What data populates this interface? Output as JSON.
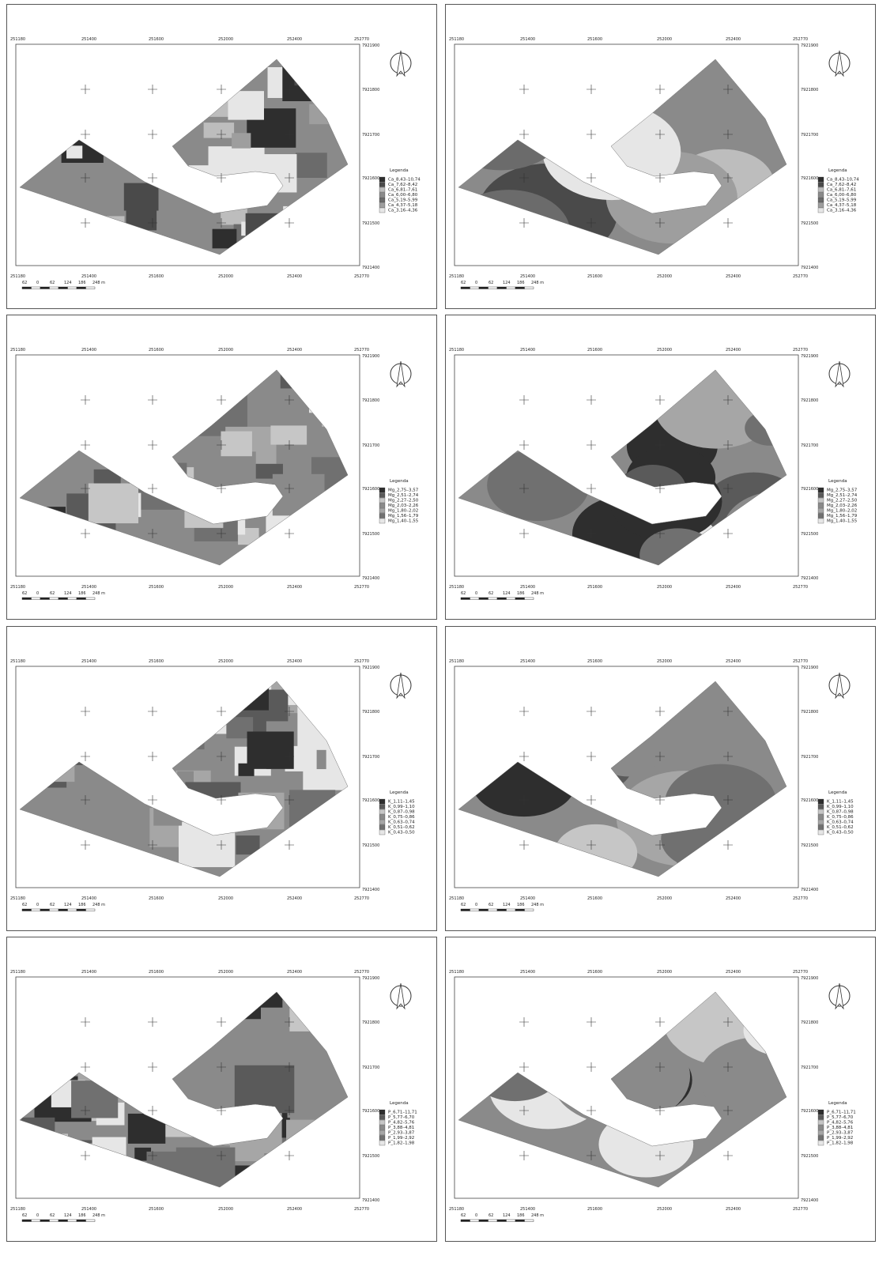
{
  "coordinates": {
    "x_labels": [
      "251180",
      "251400",
      "251600",
      "252000",
      "252400",
      "252770"
    ],
    "y_labels": [
      "7921900",
      "7921800",
      "7921700",
      "7921600",
      "7921500",
      "7921400"
    ]
  },
  "scale_bar": {
    "labels": [
      "62",
      "0",
      "62",
      "124",
      "186",
      "248 m"
    ]
  },
  "panels": [
    {
      "legend_title": "Legenda",
      "legend": [
        {
          "label": "Ca_8,43–10,74",
          "color": "#2e2e2e"
        },
        {
          "label": "Ca_7,62–8,42",
          "color": "#4a4a4a"
        },
        {
          "label": "Ca_6,81–7,61",
          "color": "#bdbdbd"
        },
        {
          "label": "Ca_6,00–6,80",
          "color": "#8a8a8a"
        },
        {
          "label": "Ca_5,19–5,99",
          "color": "#6b6b6b"
        },
        {
          "label": "Ca_4,37–5,18",
          "color": "#9e9e9e"
        },
        {
          "label": "Ca_3,16–4,36",
          "color": "#e6e6e6"
        }
      ]
    },
    {
      "legend_title": "Legenda",
      "legend": [
        {
          "label": "Ca_8,43–10,74",
          "color": "#2e2e2e"
        },
        {
          "label": "Ca_7,62–8,42",
          "color": "#4a4a4a"
        },
        {
          "label": "Ca_6,81–7,61",
          "color": "#bdbdbd"
        },
        {
          "label": "Ca_6,00–6,80",
          "color": "#8a8a8a"
        },
        {
          "label": "Ca_5,19–5,99",
          "color": "#6b6b6b"
        },
        {
          "label": "Ca_4,37–5,18",
          "color": "#9e9e9e"
        },
        {
          "label": "Ca_3,16–4,36",
          "color": "#e6e6e6"
        }
      ]
    },
    {
      "legend_title": "Legenda",
      "legend": [
        {
          "label": "Mg_2,75–3,57",
          "color": "#2e2e2e"
        },
        {
          "label": "Mg_2,51–2,74",
          "color": "#5a5a5a"
        },
        {
          "label": "Mg_2,27–2,50",
          "color": "#c6c6c6"
        },
        {
          "label": "Mg_2,03–2,26",
          "color": "#8a8a8a"
        },
        {
          "label": "Mg_1,80–2,02",
          "color": "#a6a6a6"
        },
        {
          "label": "Mg_1,56–1,79",
          "color": "#707070"
        },
        {
          "label": "Mg_1,40–1,55",
          "color": "#e6e6e6"
        }
      ]
    },
    {
      "legend_title": "Legenda",
      "legend": [
        {
          "label": "Mg_2,75–3,57",
          "color": "#2e2e2e"
        },
        {
          "label": "Mg_2,51–2,74",
          "color": "#5a5a5a"
        },
        {
          "label": "Mg_2,27–2,50",
          "color": "#c6c6c6"
        },
        {
          "label": "Mg_2,03–2,26",
          "color": "#8a8a8a"
        },
        {
          "label": "Mg_1,80–2,02",
          "color": "#a6a6a6"
        },
        {
          "label": "Mg_1,56–1,79",
          "color": "#707070"
        },
        {
          "label": "Mg_1,40–1,55",
          "color": "#e6e6e6"
        }
      ]
    },
    {
      "legend_title": "Legenda",
      "legend": [
        {
          "label": "K_1,11–1,45",
          "color": "#2e2e2e"
        },
        {
          "label": "K_0,99–1,10",
          "color": "#5a5a5a"
        },
        {
          "label": "K_0,87–0,98",
          "color": "#c6c6c6"
        },
        {
          "label": "K_0,75–0,86",
          "color": "#8a8a8a"
        },
        {
          "label": "K_0,63–0,74",
          "color": "#a6a6a6"
        },
        {
          "label": "K_0,51–0,62",
          "color": "#707070"
        },
        {
          "label": "K_0,43–0,50",
          "color": "#e6e6e6"
        }
      ]
    },
    {
      "legend_title": "Legenda",
      "legend": [
        {
          "label": "K_1,11–1,45",
          "color": "#2e2e2e"
        },
        {
          "label": "K_0,99–1,10",
          "color": "#5a5a5a"
        },
        {
          "label": "K_0,87–0,98",
          "color": "#c6c6c6"
        },
        {
          "label": "K_0,75–0,86",
          "color": "#8a8a8a"
        },
        {
          "label": "K_0,63–0,74",
          "color": "#a6a6a6"
        },
        {
          "label": "K_0,51–0,62",
          "color": "#707070"
        },
        {
          "label": "K_0,43–0,50",
          "color": "#e6e6e6"
        }
      ]
    },
    {
      "legend_title": "Legenda",
      "legend": [
        {
          "label": "P_6,71–11,71",
          "color": "#2e2e2e"
        },
        {
          "label": "P_5,77–6,70",
          "color": "#5a5a5a"
        },
        {
          "label": "P_4,82–5,76",
          "color": "#c6c6c6"
        },
        {
          "label": "P_3,88–4,81",
          "color": "#8a8a8a"
        },
        {
          "label": "P_2,93–3,87",
          "color": "#a6a6a6"
        },
        {
          "label": "P_1,99–2,92",
          "color": "#707070"
        },
        {
          "label": "P_1,82–1,98",
          "color": "#e6e6e6"
        }
      ]
    },
    {
      "legend_title": "Legenda",
      "legend": [
        {
          "label": "P_6,71–11,71",
          "color": "#2e2e2e"
        },
        {
          "label": "P_5,77–6,70",
          "color": "#5a5a5a"
        },
        {
          "label": "P_4,82–5,76",
          "color": "#c6c6c6"
        },
        {
          "label": "P_3,88–4,81",
          "color": "#8a8a8a"
        },
        {
          "label": "P_2,93–3,87",
          "color": "#a6a6a6"
        },
        {
          "label": "P_1,99–2,92",
          "color": "#707070"
        },
        {
          "label": "P_1,82–1,98",
          "color": "#e6e6e6"
        }
      ]
    }
  ]
}
